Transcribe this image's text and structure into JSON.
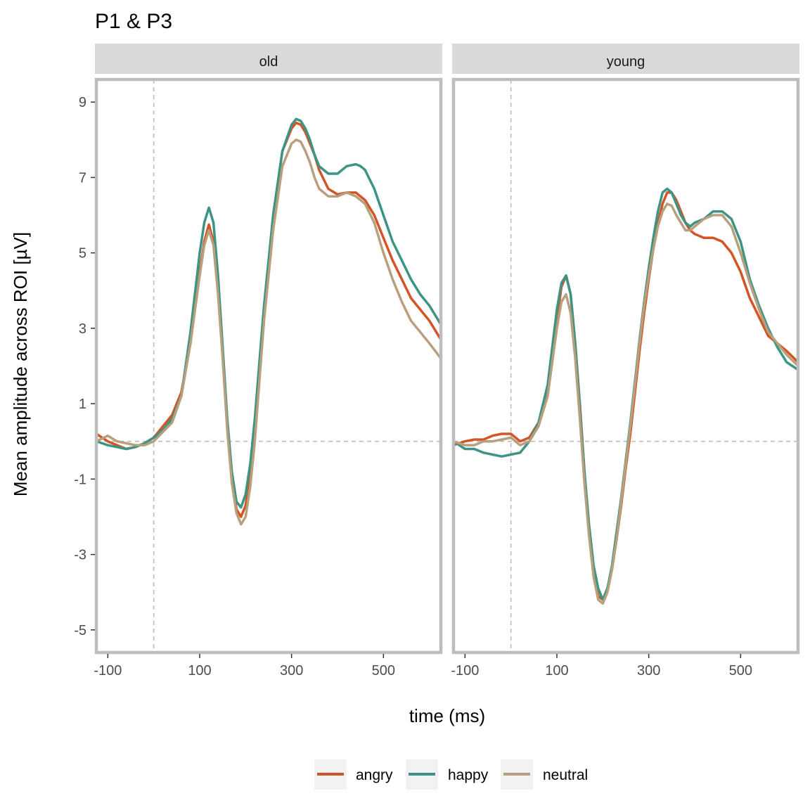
{
  "chart_data": {
    "type": "line",
    "title": "P1 & P3",
    "xlabel": "time (ms)",
    "ylabel": "Mean amplitude across ROI [µV]",
    "xlim": [
      -125,
      625
    ],
    "ylim": [
      -5.6,
      9.6
    ],
    "x_ticks": [
      -100,
      100,
      300,
      500
    ],
    "x_tick_labels": [
      "-100",
      "100",
      "300",
      "500"
    ],
    "y_ticks": [
      -5,
      -3,
      -1,
      1,
      3,
      5,
      7,
      9
    ],
    "y_tick_labels": [
      "-5",
      "-3",
      "-1",
      "1",
      "3",
      "5",
      "7",
      "9"
    ],
    "reference_lines": {
      "x": 0,
      "y": 0
    },
    "legend_position": "bottom",
    "grid": false,
    "colors": {
      "angry": "#d35426",
      "happy": "#3d9485",
      "neutral": "#b89f7d"
    },
    "legend": [
      "angry",
      "happy",
      "neutral"
    ],
    "panels": [
      {
        "label": "old",
        "series": [
          {
            "name": "angry",
            "x": [
              -125,
              -100,
              -80,
              -60,
              -40,
              -20,
              0,
              20,
              40,
              60,
              80,
              100,
              110,
              120,
              130,
              140,
              150,
              160,
              170,
              180,
              190,
              200,
              210,
              220,
              230,
              240,
              260,
              280,
              300,
              310,
              320,
              330,
              340,
              350,
              360,
              380,
              400,
              420,
              440,
              460,
              480,
              500,
              520,
              540,
              560,
              580,
              600,
              625
            ],
            "y": [
              0.2,
              0.0,
              -0.1,
              -0.2,
              -0.15,
              -0.05,
              0.1,
              0.4,
              0.7,
              1.3,
              2.6,
              4.5,
              5.3,
              5.75,
              5.3,
              4.0,
              2.3,
              0.5,
              -0.9,
              -1.8,
              -2.0,
              -1.7,
              -0.8,
              0.5,
              2.0,
              3.5,
              6.0,
              7.7,
              8.3,
              8.45,
              8.4,
              8.2,
              7.9,
              7.6,
              7.2,
              6.7,
              6.55,
              6.6,
              6.6,
              6.4,
              6.0,
              5.4,
              4.8,
              4.3,
              3.8,
              3.5,
              3.2,
              2.7
            ]
          },
          {
            "name": "happy",
            "x": [
              -125,
              -100,
              -80,
              -60,
              -40,
              -20,
              0,
              20,
              40,
              60,
              80,
              100,
              110,
              120,
              130,
              140,
              150,
              160,
              170,
              180,
              190,
              200,
              210,
              220,
              230,
              240,
              260,
              280,
              300,
              310,
              320,
              330,
              340,
              350,
              360,
              380,
              400,
              420,
              440,
              450,
              460,
              480,
              500,
              520,
              540,
              560,
              580,
              600,
              625
            ],
            "y": [
              0.0,
              -0.1,
              -0.15,
              -0.2,
              -0.15,
              -0.05,
              0.1,
              0.3,
              0.6,
              1.2,
              2.9,
              5.0,
              5.8,
              6.2,
              5.8,
              4.4,
              2.5,
              0.6,
              -0.8,
              -1.6,
              -1.75,
              -1.4,
              -0.6,
              0.6,
              2.1,
              3.6,
              6.0,
              7.7,
              8.4,
              8.55,
              8.5,
              8.3,
              8.0,
              7.6,
              7.3,
              7.1,
              7.1,
              7.3,
              7.35,
              7.3,
              7.2,
              6.7,
              6.0,
              5.3,
              4.8,
              4.3,
              3.9,
              3.6,
              3.1
            ]
          },
          {
            "name": "neutral",
            "x": [
              -125,
              -100,
              -80,
              -60,
              -40,
              -20,
              0,
              20,
              40,
              60,
              80,
              100,
              110,
              120,
              130,
              140,
              150,
              160,
              170,
              180,
              190,
              200,
              210,
              220,
              230,
              240,
              260,
              280,
              300,
              310,
              320,
              330,
              340,
              350,
              360,
              380,
              400,
              420,
              440,
              460,
              480,
              500,
              520,
              540,
              560,
              580,
              600,
              625
            ],
            "y": [
              0.0,
              0.15,
              0.0,
              -0.05,
              -0.1,
              -0.1,
              0.0,
              0.25,
              0.5,
              1.2,
              2.6,
              4.4,
              5.2,
              5.6,
              5.2,
              3.9,
              2.2,
              0.3,
              -1.1,
              -1.9,
              -2.2,
              -2.0,
              -1.2,
              0.0,
              1.6,
              3.2,
              5.6,
              7.3,
              7.9,
              8.0,
              7.95,
              7.7,
              7.4,
              7.0,
              6.7,
              6.5,
              6.5,
              6.6,
              6.5,
              6.3,
              5.8,
              5.0,
              4.3,
              3.7,
              3.2,
              2.9,
              2.6,
              2.2
            ]
          }
        ]
      },
      {
        "label": "young",
        "series": [
          {
            "name": "angry",
            "x": [
              -125,
              -100,
              -80,
              -60,
              -40,
              -20,
              0,
              20,
              40,
              60,
              80,
              100,
              110,
              120,
              130,
              140,
              150,
              160,
              170,
              180,
              190,
              200,
              210,
              220,
              230,
              240,
              250,
              260,
              270,
              280,
              290,
              300,
              310,
              320,
              330,
              340,
              350,
              360,
              370,
              380,
              390,
              400,
              420,
              440,
              460,
              480,
              500,
              520,
              540,
              560,
              580,
              600,
              625
            ],
            "y": [
              -0.1,
              0.0,
              0.05,
              0.05,
              0.15,
              0.2,
              0.2,
              0.0,
              0.1,
              0.5,
              1.4,
              3.2,
              4.1,
              4.4,
              3.9,
              2.6,
              1.0,
              -0.8,
              -2.3,
              -3.5,
              -4.1,
              -4.2,
              -3.9,
              -3.4,
              -2.6,
              -1.7,
              -0.7,
              0.2,
              1.3,
              2.4,
              3.4,
              4.3,
              5.1,
              5.8,
              6.3,
              6.6,
              6.6,
              6.4,
              6.1,
              5.8,
              5.6,
              5.5,
              5.4,
              5.4,
              5.3,
              5.0,
              4.5,
              3.8,
              3.3,
              2.8,
              2.6,
              2.4,
              2.1
            ]
          },
          {
            "name": "happy",
            "x": [
              -125,
              -100,
              -80,
              -60,
              -40,
              -20,
              0,
              20,
              40,
              60,
              80,
              100,
              110,
              120,
              130,
              140,
              150,
              160,
              170,
              180,
              190,
              200,
              210,
              220,
              230,
              240,
              250,
              260,
              270,
              280,
              290,
              300,
              310,
              320,
              330,
              340,
              350,
              360,
              370,
              380,
              390,
              400,
              420,
              440,
              460,
              480,
              500,
              520,
              540,
              560,
              580,
              600,
              625
            ],
            "y": [
              0.0,
              -0.2,
              -0.2,
              -0.3,
              -0.35,
              -0.4,
              -0.35,
              -0.3,
              0.0,
              0.5,
              1.5,
              3.5,
              4.2,
              4.4,
              3.9,
              2.6,
              0.9,
              -0.8,
              -2.2,
              -3.3,
              -3.9,
              -4.2,
              -3.9,
              -3.3,
              -2.4,
              -1.5,
              -0.5,
              0.5,
              1.6,
              2.7,
              3.7,
              4.6,
              5.4,
              6.1,
              6.6,
              6.7,
              6.6,
              6.3,
              6.0,
              5.8,
              5.7,
              5.8,
              5.9,
              6.1,
              6.1,
              5.9,
              5.3,
              4.3,
              3.6,
              3.0,
              2.5,
              2.1,
              1.9
            ]
          },
          {
            "name": "neutral",
            "x": [
              -125,
              -100,
              -80,
              -60,
              -40,
              -20,
              0,
              20,
              40,
              60,
              80,
              100,
              110,
              120,
              130,
              140,
              150,
              160,
              170,
              180,
              190,
              200,
              210,
              220,
              230,
              240,
              250,
              260,
              270,
              280,
              290,
              300,
              310,
              320,
              330,
              340,
              350,
              360,
              370,
              380,
              390,
              400,
              420,
              440,
              460,
              480,
              500,
              520,
              540,
              560,
              580,
              600,
              625
            ],
            "y": [
              0.0,
              -0.1,
              -0.1,
              0.0,
              0.0,
              0.05,
              0.1,
              -0.1,
              0.0,
              0.4,
              1.2,
              3.0,
              3.7,
              3.9,
              3.4,
              2.2,
              0.6,
              -1.1,
              -2.5,
              -3.6,
              -4.2,
              -4.3,
              -4.0,
              -3.4,
              -2.6,
              -1.6,
              -0.6,
              0.4,
              1.5,
              2.6,
              3.6,
              4.4,
              5.1,
              5.7,
              6.1,
              6.3,
              6.25,
              6.0,
              5.8,
              5.6,
              5.6,
              5.7,
              5.9,
              6.0,
              6.0,
              5.7,
              5.0,
              4.2,
              3.5,
              2.9,
              2.6,
              2.3,
              2.0
            ]
          }
        ]
      }
    ]
  }
}
